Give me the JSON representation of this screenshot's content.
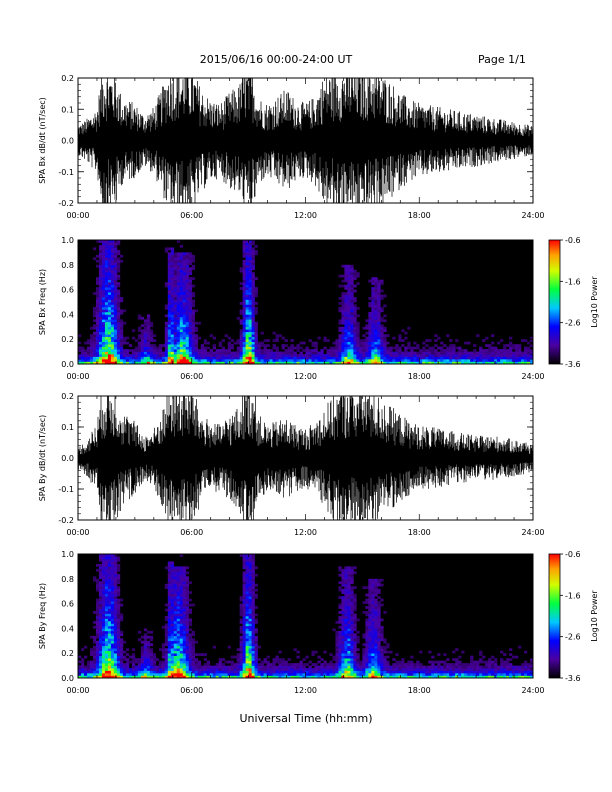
{
  "header": {
    "title": "2015/06/16  00:00-24:00 UT",
    "page": "Page 1/1"
  },
  "xlabel": "Universal Time (hh:mm)",
  "x_tick_labels": [
    "00:00",
    "06:00",
    "12:00",
    "18:00",
    "24:00"
  ],
  "chart_data": [
    {
      "type": "line",
      "ylabel": "SPA Bx dB/dt (nT/sec)",
      "xlim_hours": [
        0,
        24
      ],
      "ylim": [
        -0.2,
        0.2
      ],
      "y_ticks": [
        -0.2,
        -0.1,
        0.0,
        0.1,
        0.2
      ],
      "y_tick_labels": [
        "-0.2",
        "-0.1",
        "0.0",
        "0.1",
        "0.2"
      ],
      "trace_color": "#000000",
      "envelope": {
        "hour": [
          0,
          0.5,
          1,
          1.3,
          1.5,
          2,
          2.3,
          3,
          3.5,
          4,
          4.5,
          4.8,
          5,
          5.5,
          6,
          6.5,
          7,
          7.5,
          8,
          8.5,
          8.8,
          9,
          9.3,
          9.5,
          10,
          10.5,
          11,
          11.5,
          12,
          12.5,
          13,
          13.5,
          14,
          14.5,
          15,
          15.5,
          16,
          16.5,
          17,
          17.5,
          18,
          19,
          20,
          21,
          22,
          23,
          24
        ],
        "amplitude": [
          0.04,
          0.06,
          0.09,
          0.2,
          0.2,
          0.18,
          0.12,
          0.1,
          0.07,
          0.09,
          0.15,
          0.2,
          0.2,
          0.2,
          0.2,
          0.14,
          0.11,
          0.1,
          0.13,
          0.15,
          0.2,
          0.2,
          0.18,
          0.12,
          0.1,
          0.12,
          0.14,
          0.11,
          0.1,
          0.12,
          0.18,
          0.19,
          0.2,
          0.2,
          0.2,
          0.2,
          0.18,
          0.16,
          0.13,
          0.11,
          0.1,
          0.09,
          0.08,
          0.07,
          0.06,
          0.05,
          0.04
        ]
      }
    },
    {
      "type": "heatmap",
      "ylabel": "SPA Bx Freq (Hz)",
      "xlim_hours": [
        0,
        24
      ],
      "ylim": [
        0.0,
        1.0
      ],
      "y_ticks": [
        0.0,
        0.2,
        0.4,
        0.6,
        0.8,
        1.0
      ],
      "y_tick_labels": [
        "0.0",
        "0.2",
        "0.4",
        "0.6",
        "0.8",
        "1.0"
      ],
      "colorbar": {
        "label": "Log10 Power",
        "min": -3.6,
        "max": -0.6,
        "ticks": [
          "-0.6",
          "-1.6",
          "-2.6",
          "-3.6"
        ]
      },
      "power_bursts": [
        {
          "hour": 1.6,
          "width": 0.5,
          "max_freq": 1.0,
          "intensity": 1.0
        },
        {
          "hour": 4.9,
          "width": 0.2,
          "max_freq": 0.95,
          "intensity": 0.8
        },
        {
          "hour": 5.5,
          "width": 0.5,
          "max_freq": 0.9,
          "intensity": 0.85
        },
        {
          "hour": 9.0,
          "width": 0.3,
          "max_freq": 1.0,
          "intensity": 1.0
        },
        {
          "hour": 14.3,
          "width": 0.4,
          "max_freq": 0.8,
          "intensity": 0.6
        },
        {
          "hour": 15.7,
          "width": 0.4,
          "max_freq": 0.7,
          "intensity": 0.55
        },
        {
          "hour": 3.6,
          "width": 0.3,
          "max_freq": 0.4,
          "intensity": 0.4
        }
      ]
    },
    {
      "type": "line",
      "ylabel": "SPA By dB/dt (nT/sec)",
      "xlim_hours": [
        0,
        24
      ],
      "ylim": [
        -0.2,
        0.2
      ],
      "y_ticks": [
        -0.2,
        -0.1,
        0.0,
        0.1,
        0.2
      ],
      "y_tick_labels": [
        "-0.2",
        "-0.1",
        "0.0",
        "0.1",
        "0.2"
      ],
      "trace_color": "#000000",
      "envelope": {
        "hour": [
          0,
          0.5,
          1,
          1.3,
          1.5,
          2,
          2.3,
          3,
          3.5,
          4,
          4.5,
          4.8,
          5,
          5.5,
          6,
          6.5,
          7,
          7.5,
          8,
          8.5,
          8.8,
          9,
          9.3,
          9.5,
          10,
          10.5,
          11,
          11.5,
          12,
          12.5,
          13,
          13.5,
          14,
          14.5,
          15,
          15.5,
          16,
          16.5,
          17,
          17.5,
          18,
          19,
          20,
          21,
          22,
          23,
          24
        ],
        "amplitude": [
          0.03,
          0.05,
          0.1,
          0.2,
          0.2,
          0.2,
          0.13,
          0.1,
          0.06,
          0.08,
          0.14,
          0.2,
          0.2,
          0.2,
          0.2,
          0.12,
          0.1,
          0.09,
          0.12,
          0.14,
          0.2,
          0.2,
          0.2,
          0.12,
          0.09,
          0.1,
          0.11,
          0.09,
          0.08,
          0.1,
          0.14,
          0.17,
          0.2,
          0.2,
          0.2,
          0.19,
          0.16,
          0.14,
          0.12,
          0.1,
          0.09,
          0.08,
          0.07,
          0.06,
          0.06,
          0.05,
          0.04
        ]
      }
    },
    {
      "type": "heatmap",
      "ylabel": "SPA By Freq (Hz)",
      "xlim_hours": [
        0,
        24
      ],
      "ylim": [
        0.0,
        1.0
      ],
      "y_ticks": [
        0.0,
        0.2,
        0.4,
        0.6,
        0.8,
        1.0
      ],
      "y_tick_labels": [
        "0.0",
        "0.2",
        "0.4",
        "0.6",
        "0.8",
        "1.0"
      ],
      "colorbar": {
        "label": "Log10 Power",
        "min": -3.6,
        "max": -0.6,
        "ticks": [
          "-0.6",
          "-1.6",
          "-2.6",
          "-3.6"
        ]
      },
      "power_bursts": [
        {
          "hour": 1.6,
          "width": 0.5,
          "max_freq": 1.0,
          "intensity": 1.0
        },
        {
          "hour": 4.9,
          "width": 0.2,
          "max_freq": 0.95,
          "intensity": 0.8
        },
        {
          "hour": 5.3,
          "width": 0.5,
          "max_freq": 0.9,
          "intensity": 0.9
        },
        {
          "hour": 9.0,
          "width": 0.3,
          "max_freq": 1.0,
          "intensity": 1.0
        },
        {
          "hour": 14.2,
          "width": 0.4,
          "max_freq": 0.9,
          "intensity": 0.7
        },
        {
          "hour": 15.6,
          "width": 0.4,
          "max_freq": 0.8,
          "intensity": 0.6
        },
        {
          "hour": 3.6,
          "width": 0.3,
          "max_freq": 0.4,
          "intensity": 0.4
        }
      ]
    }
  ]
}
